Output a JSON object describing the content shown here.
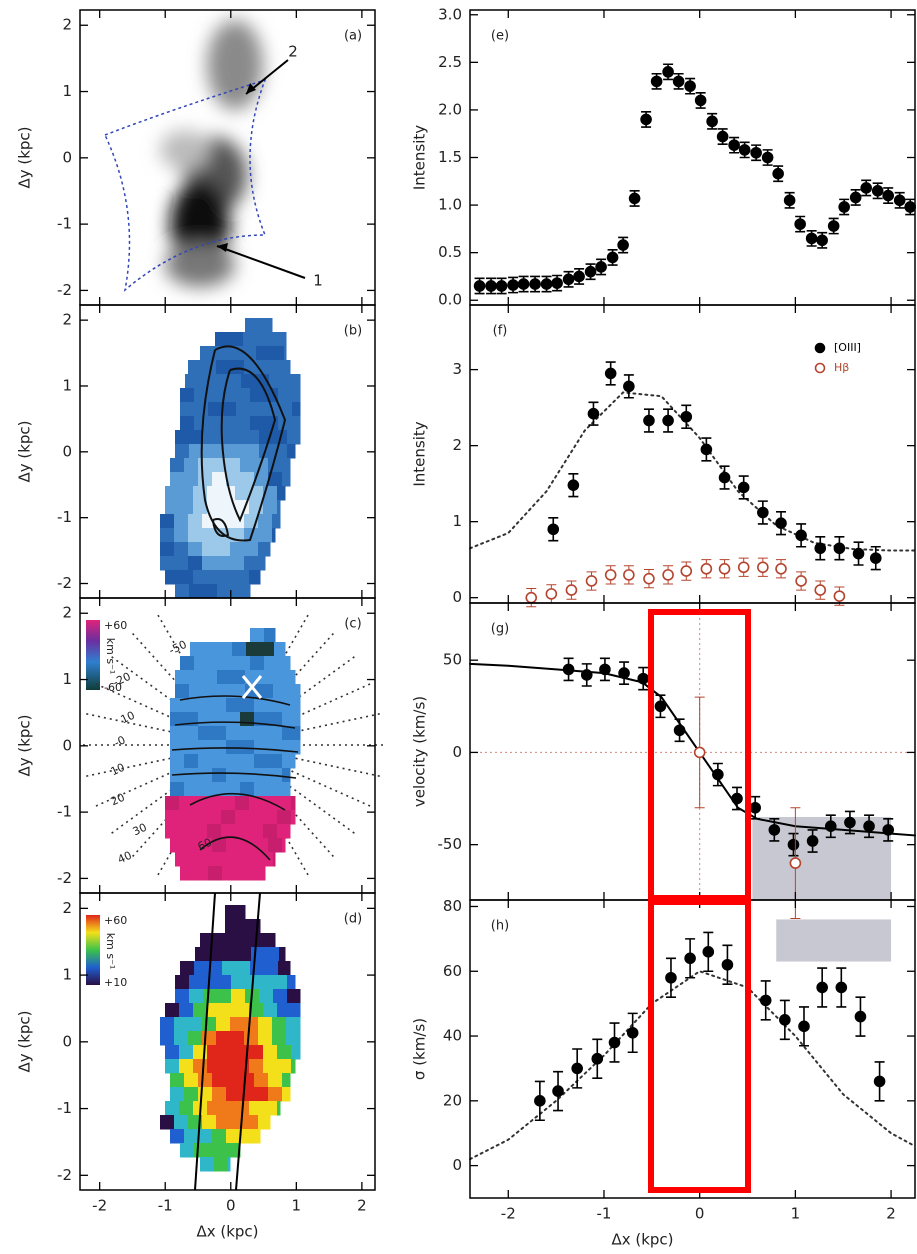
{
  "chart_data": [
    {
      "type": "image",
      "title": "(a)",
      "ylabel": "Δy (kpc)",
      "xlim": [
        -2.3,
        2.2
      ],
      "ylim": [
        -2.22,
        2.23
      ],
      "xticks": [
        -2,
        -1,
        0,
        1,
        2
      ],
      "yticks": [
        -2,
        -1,
        0,
        1,
        2
      ],
      "annotations": [
        "2",
        "1"
      ]
    },
    {
      "type": "image",
      "title": "(b)",
      "ylabel": "Δy (kpc)",
      "xlim": [
        -2.3,
        2.2
      ],
      "ylim": [
        -2.22,
        2.23
      ],
      "xticks": [
        -2,
        -1,
        0,
        1,
        2
      ],
      "yticks": [
        -2,
        -1,
        0,
        1,
        2
      ]
    },
    {
      "type": "image",
      "title": "(c)",
      "ylabel": "Δy (kpc)",
      "xlim": [
        -2.3,
        2.2
      ],
      "ylim": [
        -2.22,
        2.23
      ],
      "xticks": [
        -2,
        -1,
        0,
        1,
        2
      ],
      "yticks": [
        -2,
        -1,
        0,
        1,
        2
      ],
      "colorbar": {
        "top": "+60",
        "bottom": "-60",
        "unit": "km s⁻¹"
      },
      "contour_labels": [
        "-50",
        "-20",
        "10",
        "-0",
        "10",
        "20",
        "30",
        "40",
        "60"
      ]
    },
    {
      "type": "image",
      "title": "(d)",
      "ylabel": "Δy (kpc)",
      "xlabel": "Δx (kpc)",
      "xlim": [
        -2.3,
        2.2
      ],
      "ylim": [
        -2.22,
        2.23
      ],
      "xticks": [
        -2,
        -1,
        0,
        1,
        2
      ],
      "yticks": [
        -2,
        -1,
        0,
        1,
        2
      ],
      "colorbar": {
        "top": "+60",
        "bottom": "+10",
        "unit": "km s⁻¹"
      }
    },
    {
      "type": "scatter",
      "title": "(e)",
      "ylabel": "Intensity",
      "xlim": [
        -2.4,
        2.25
      ],
      "ylim": [
        -0.05,
        3.05
      ],
      "xticks": [
        -2,
        -1,
        0,
        1,
        2
      ],
      "yticks": [
        {
          "value": 0,
          "label": "0.0"
        },
        0.5,
        {
          "value": 1,
          "label": "1.0"
        },
        1.5,
        {
          "value": 2,
          "label": "2.0"
        },
        2.5,
        {
          "value": 3,
          "label": "3.0"
        }
      ],
      "series": [
        {
          "color": "#000000",
          "marker": "filled",
          "error": 0.08,
          "x": [
            -2.3,
            -2.18,
            -2.07,
            -1.95,
            -1.84,
            -1.72,
            -1.6,
            -1.49,
            -1.37,
            -1.26,
            -1.14,
            -1.03,
            -0.91,
            -0.8,
            -0.68,
            -0.56,
            -0.45,
            -0.33,
            -0.22,
            -0.1,
            0.01,
            0.13,
            0.24,
            0.36,
            0.47,
            0.59,
            0.71,
            0.82,
            0.94,
            1.05,
            1.17,
            1.28,
            1.4,
            1.51,
            1.63,
            1.74,
            1.86,
            1.97,
            2.09,
            2.2
          ],
          "values": [
            0.15,
            0.15,
            0.15,
            0.16,
            0.17,
            0.17,
            0.17,
            0.18,
            0.22,
            0.25,
            0.3,
            0.35,
            0.45,
            0.58,
            1.07,
            1.9,
            2.3,
            2.4,
            2.3,
            2.25,
            2.1,
            1.88,
            1.72,
            1.63,
            1.58,
            1.55,
            1.5,
            1.33,
            1.05,
            0.8,
            0.65,
            0.63,
            0.78,
            0.98,
            1.08,
            1.18,
            1.15,
            1.1,
            1.05,
            0.98
          ]
        }
      ]
    },
    {
      "type": "scatter",
      "title": "(f)",
      "ylabel": "Intensity",
      "xlim": [
        -2.4,
        2.25
      ],
      "ylim": [
        -0.07,
        3.85
      ],
      "xticks": [
        -2,
        -1,
        0,
        1,
        2
      ],
      "yticks": [
        0,
        1,
        2,
        3
      ],
      "legend": "upper right",
      "curve": {
        "style": "dotted",
        "color": "#333333",
        "x": [
          -2.4,
          -2.0,
          -1.6,
          -1.2,
          -0.8,
          -0.4,
          0,
          0.4,
          0.8,
          1.2,
          1.6,
          2.0,
          2.25
        ],
        "values": [
          0.65,
          0.85,
          1.4,
          2.2,
          2.7,
          2.65,
          2.1,
          1.4,
          0.95,
          0.72,
          0.64,
          0.62,
          0.62
        ]
      },
      "series": [
        {
          "name": "[OIII]",
          "color": "#000000",
          "marker": "filled",
          "error": 0.15,
          "x": [
            -1.53,
            -1.32,
            -1.11,
            -0.93,
            -0.74,
            -0.53,
            -0.33,
            -0.14,
            0.07,
            0.26,
            0.46,
            0.66,
            0.85,
            1.06,
            1.26,
            1.46,
            1.66,
            1.84
          ],
          "values": [
            0.9,
            1.48,
            2.42,
            2.95,
            2.78,
            2.33,
            2.33,
            2.38,
            1.95,
            1.58,
            1.45,
            1.12,
            0.98,
            0.82,
            0.65,
            0.65,
            0.58,
            0.52
          ]
        },
        {
          "name": "Hβ",
          "color": "#b5442f",
          "marker": "open",
          "error": 0.12,
          "x": [
            -1.76,
            -1.55,
            -1.34,
            -1.13,
            -0.93,
            -0.74,
            -0.53,
            -0.33,
            -0.14,
            0.07,
            0.26,
            0.46,
            0.66,
            0.85,
            1.06,
            1.26,
            1.46
          ],
          "values": [
            0.0,
            0.05,
            0.1,
            0.22,
            0.3,
            0.3,
            0.25,
            0.3,
            0.35,
            0.38,
            0.38,
            0.4,
            0.4,
            0.38,
            0.22,
            0.1,
            0.02
          ]
        }
      ]
    },
    {
      "type": "scatter",
      "title": "(g)",
      "ylabel": "velocity (km/s)",
      "xlim": [
        -2.4,
        2.25
      ],
      "ylim": [
        -80,
        81
      ],
      "xticks": [
        -2,
        -1,
        0,
        1,
        2
      ],
      "yticks": [
        -50,
        0,
        50
      ],
      "zero_lines": true,
      "regions": [
        {
          "color": "#c8c8d2",
          "x": [
            0.55,
            2.0
          ],
          "y": [
            -80,
            -35
          ]
        }
      ],
      "curve": {
        "style": "solid",
        "color": "#000000",
        "x": [
          -2.4,
          -2,
          -1.5,
          -1,
          -0.6,
          -0.4,
          -0.2,
          0,
          0.2,
          0.4,
          0.6,
          1,
          1.5,
          2,
          2.25
        ],
        "values": [
          48,
          47,
          45,
          43,
          38,
          30,
          15,
          0,
          -15,
          -30,
          -36,
          -40,
          -42,
          -44,
          -45
        ]
      },
      "series": [
        {
          "color": "#000000",
          "marker": "filled",
          "error": 6,
          "x": [
            -1.37,
            -1.18,
            -0.99,
            -0.79,
            -0.59,
            -0.41,
            -0.21,
            0.19,
            0.39,
            0.58,
            0.78,
            0.98,
            1.18,
            1.37,
            1.57,
            1.77,
            1.97
          ],
          "values": [
            45,
            42,
            45,
            43,
            40,
            25,
            12,
            -12,
            -25,
            -30,
            -42,
            -50,
            -48,
            -40,
            -38,
            -40,
            -42
          ]
        },
        {
          "color": "#b5442f",
          "marker": "open",
          "error": 30,
          "x": [
            0,
            1.0
          ],
          "values": [
            0,
            -60
          ]
        }
      ]
    },
    {
      "type": "scatter",
      "title": "(h)",
      "ylabel": "σ (km/s)",
      "xlabel": "Δx (kpc)",
      "xlim": [
        -2.4,
        2.25
      ],
      "ylim": [
        -10,
        82
      ],
      "xticks": [
        -2,
        -1,
        0,
        1,
        2
      ],
      "yticks": [
        0,
        20,
        40,
        60,
        80
      ],
      "regions": [
        {
          "color": "#c8c8d2",
          "x": [
            0.8,
            2.0
          ],
          "y": [
            63,
            76
          ]
        }
      ],
      "curve": {
        "style": "dotted",
        "color": "#333333",
        "x": [
          -2.4,
          -2.0,
          -1.5,
          -1.0,
          -0.5,
          0,
          0.5,
          1.0,
          1.5,
          2.0,
          2.25
        ],
        "values": [
          2,
          8,
          20,
          34,
          50,
          60,
          55,
          40,
          22,
          10,
          6
        ]
      },
      "series": [
        {
          "color": "#000000",
          "marker": "filled",
          "error": 6,
          "x": [
            -1.67,
            -1.48,
            -1.28,
            -1.07,
            -0.89,
            -0.7,
            -0.3,
            -0.1,
            0.09,
            0.29,
            0.69,
            0.89,
            1.09,
            1.28,
            1.48,
            1.68,
            1.88
          ],
          "values": [
            20,
            23,
            30,
            33,
            38,
            41,
            58,
            64,
            66,
            62,
            51,
            45,
            43,
            55,
            55,
            46,
            26
          ]
        }
      ]
    }
  ]
}
